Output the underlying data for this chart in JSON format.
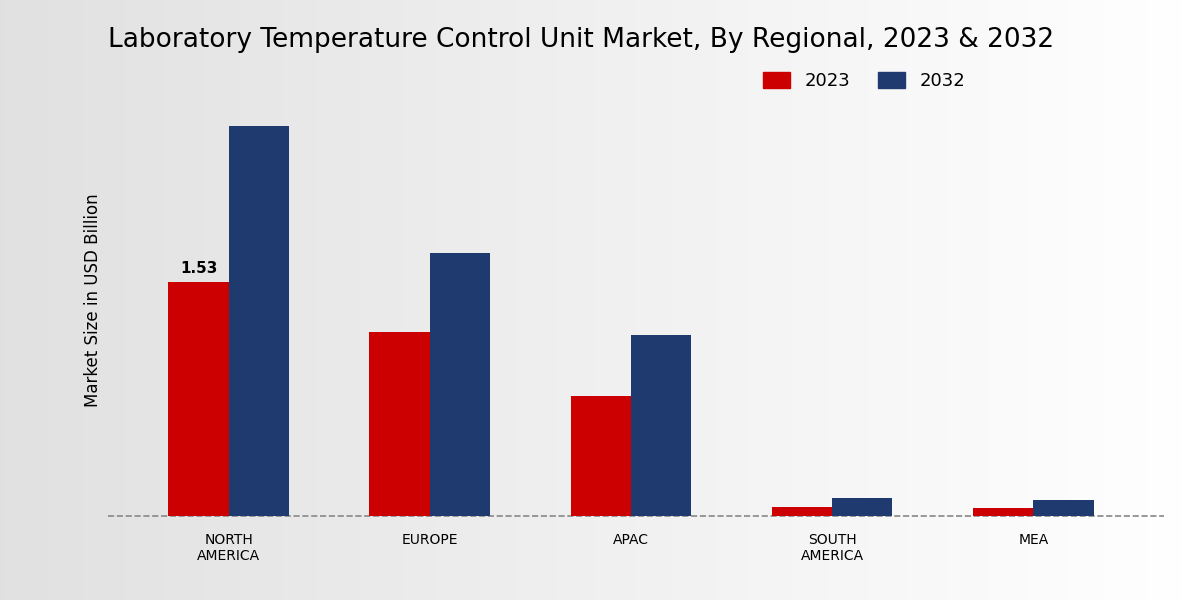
{
  "title": "Laboratory Temperature Control Unit Market, By Regional, 2023 & 2032",
  "ylabel": "Market Size in USD Billion",
  "categories": [
    "NORTH\nAMERICA",
    "EUROPE",
    "APAC",
    "SOUTH\nAMERICA",
    "MEA"
  ],
  "values_2023": [
    1.53,
    1.2,
    0.78,
    0.055,
    0.048
  ],
  "values_2032": [
    2.55,
    1.72,
    1.18,
    0.115,
    0.1
  ],
  "label_2023": "1.53",
  "color_2023": "#cc0000",
  "color_2032": "#1e3a6e",
  "bar_width": 0.3,
  "title_fontsize": 19,
  "legend_fontsize": 13,
  "axis_label_fontsize": 12,
  "tick_fontsize": 10,
  "ylim": [
    -0.08,
    2.9
  ],
  "dashed_line_y": 0.0
}
